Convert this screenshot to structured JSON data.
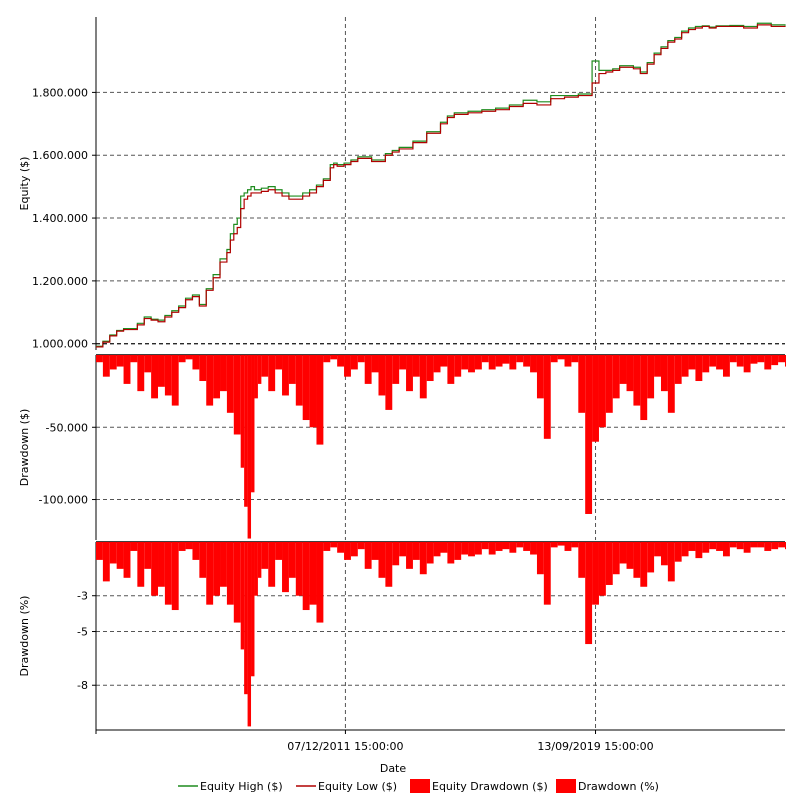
{
  "chart_data": {
    "type": "line",
    "xlabel": "Date",
    "x_ticks": [
      "07/12/2011 15:00:00",
      "13/09/2019 15:00:00"
    ],
    "colors": {
      "equity_high": "#1e8c1e",
      "equity_low": "#b00000",
      "drawdown_fill": "#ff0000",
      "grid": "#555555"
    },
    "legend": [
      {
        "label": "Equity High ($)",
        "marker": "line",
        "color": "#1e8c1e"
      },
      {
        "label": "Equity Low ($)",
        "marker": "line",
        "color": "#b00000"
      },
      {
        "label": "Equity Drawdown ($)",
        "marker": "box",
        "color": "#ff0000"
      },
      {
        "label": "Drawdown (%)",
        "marker": "box",
        "color": "#ff0000"
      }
    ],
    "legend_position": "bottom",
    "panels": [
      {
        "id": "equity",
        "ylabel": "Equity ($)",
        "ylim": [
          980000,
          2040000
        ],
        "y_ticks": [
          {
            "value": 1000000,
            "label": "1.000.000"
          },
          {
            "value": 1200000,
            "label": "1.200.000"
          },
          {
            "value": 1400000,
            "label": "1.400.000"
          },
          {
            "value": 1600000,
            "label": "1.600.000"
          },
          {
            "value": 1800000,
            "label": "1.800.000"
          }
        ],
        "series": [
          {
            "name": "Equity Low ($)",
            "x": [
              0,
              0.01,
              0.02,
              0.03,
              0.04,
              0.06,
              0.07,
              0.08,
              0.09,
              0.1,
              0.11,
              0.12,
              0.13,
              0.14,
              0.15,
              0.16,
              0.17,
              0.18,
              0.19,
              0.195,
              0.2,
              0.205,
              0.21,
              0.215,
              0.22,
              0.225,
              0.23,
              0.24,
              0.25,
              0.26,
              0.27,
              0.28,
              0.3,
              0.31,
              0.32,
              0.33,
              0.34,
              0.345,
              0.35,
              0.36,
              0.37,
              0.38,
              0.4,
              0.42,
              0.43,
              0.44,
              0.46,
              0.48,
              0.5,
              0.51,
              0.52,
              0.54,
              0.56,
              0.58,
              0.6,
              0.62,
              0.64,
              0.66,
              0.68,
              0.7,
              0.72,
              0.73,
              0.74,
              0.75,
              0.76,
              0.78,
              0.79,
              0.8,
              0.81,
              0.82,
              0.83,
              0.84,
              0.85,
              0.86,
              0.87,
              0.88,
              0.89,
              0.9,
              0.92,
              0.94,
              0.96,
              0.98,
              1.0
            ],
            "values": [
              990000,
              1005000,
              1025000,
              1040000,
              1045000,
              1060000,
              1080000,
              1075000,
              1070000,
              1085000,
              1100000,
              1115000,
              1140000,
              1150000,
              1120000,
              1170000,
              1210000,
              1260000,
              1290000,
              1330000,
              1350000,
              1370000,
              1430000,
              1460000,
              1470000,
              1480000,
              1480000,
              1485000,
              1490000,
              1480000,
              1470000,
              1460000,
              1470000,
              1480000,
              1500000,
              1520000,
              1560000,
              1570000,
              1565000,
              1570000,
              1580000,
              1590000,
              1580000,
              1600000,
              1610000,
              1620000,
              1640000,
              1670000,
              1700000,
              1720000,
              1730000,
              1735000,
              1740000,
              1745000,
              1755000,
              1765000,
              1760000,
              1780000,
              1785000,
              1790000,
              1830000,
              1860000,
              1865000,
              1870000,
              1880000,
              1875000,
              1860000,
              1890000,
              1920000,
              1940000,
              1960000,
              1970000,
              1990000,
              2000000,
              2005000,
              2010000,
              2005000,
              2010000,
              2010000,
              2005000,
              2015000,
              2010000,
              2008000
            ]
          },
          {
            "name": "Equity High ($)",
            "x": [
              0,
              0.01,
              0.02,
              0.03,
              0.04,
              0.06,
              0.07,
              0.08,
              0.09,
              0.1,
              0.11,
              0.12,
              0.13,
              0.14,
              0.15,
              0.16,
              0.17,
              0.18,
              0.19,
              0.195,
              0.2,
              0.205,
              0.21,
              0.215,
              0.22,
              0.225,
              0.23,
              0.24,
              0.25,
              0.26,
              0.27,
              0.28,
              0.3,
              0.31,
              0.32,
              0.33,
              0.34,
              0.345,
              0.35,
              0.36,
              0.37,
              0.38,
              0.4,
              0.42,
              0.43,
              0.44,
              0.46,
              0.48,
              0.5,
              0.51,
              0.52,
              0.54,
              0.56,
              0.58,
              0.6,
              0.62,
              0.64,
              0.66,
              0.68,
              0.7,
              0.72,
              0.73,
              0.74,
              0.75,
              0.76,
              0.78,
              0.79,
              0.8,
              0.81,
              0.82,
              0.83,
              0.84,
              0.85,
              0.86,
              0.87,
              0.88,
              0.89,
              0.9,
              0.92,
              0.94,
              0.96,
              0.98,
              1.0
            ],
            "values": [
              992000,
              1008000,
              1028000,
              1042000,
              1048000,
              1065000,
              1085000,
              1078000,
              1075000,
              1090000,
              1105000,
              1120000,
              1145000,
              1155000,
              1125000,
              1175000,
              1220000,
              1270000,
              1300000,
              1350000,
              1380000,
              1400000,
              1470000,
              1480000,
              1490000,
              1500000,
              1490000,
              1495000,
              1500000,
              1490000,
              1480000,
              1470000,
              1480000,
              1490000,
              1505000,
              1525000,
              1570000,
              1575000,
              1570000,
              1575000,
              1585000,
              1595000,
              1585000,
              1605000,
              1615000,
              1625000,
              1645000,
              1675000,
              1705000,
              1725000,
              1735000,
              1740000,
              1745000,
              1750000,
              1760000,
              1775000,
              1770000,
              1790000,
              1790000,
              1795000,
              1900000,
              1870000,
              1870000,
              1875000,
              1885000,
              1880000,
              1865000,
              1895000,
              1925000,
              1945000,
              1965000,
              1975000,
              1995000,
              2005000,
              2010000,
              2012000,
              2008000,
              2012000,
              2013000,
              2010000,
              2020000,
              2015000,
              2012000
            ]
          }
        ]
      },
      {
        "id": "drawdown_usd",
        "ylabel": "Drawdown ($)",
        "ylim": [
          -128000,
          0
        ],
        "y_ticks": [
          {
            "value": -50000,
            "label": "-50.000"
          },
          {
            "value": -100000,
            "label": "-100.000"
          }
        ],
        "series": [
          {
            "name": "Equity Drawdown ($)",
            "x": [
              0.0,
              0.01,
              0.02,
              0.03,
              0.04,
              0.05,
              0.06,
              0.07,
              0.08,
              0.09,
              0.1,
              0.11,
              0.12,
              0.13,
              0.14,
              0.15,
              0.16,
              0.17,
              0.18,
              0.19,
              0.2,
              0.21,
              0.215,
              0.22,
              0.225,
              0.23,
              0.235,
              0.24,
              0.25,
              0.26,
              0.27,
              0.28,
              0.29,
              0.3,
              0.31,
              0.32,
              0.33,
              0.34,
              0.35,
              0.36,
              0.37,
              0.38,
              0.39,
              0.4,
              0.41,
              0.42,
              0.43,
              0.44,
              0.45,
              0.46,
              0.47,
              0.48,
              0.49,
              0.5,
              0.51,
              0.52,
              0.53,
              0.54,
              0.55,
              0.56,
              0.57,
              0.58,
              0.59,
              0.6,
              0.61,
              0.62,
              0.63,
              0.64,
              0.65,
              0.66,
              0.67,
              0.68,
              0.69,
              0.7,
              0.71,
              0.72,
              0.73,
              0.74,
              0.75,
              0.76,
              0.77,
              0.78,
              0.79,
              0.8,
              0.81,
              0.82,
              0.83,
              0.84,
              0.85,
              0.86,
              0.87,
              0.88,
              0.89,
              0.9,
              0.91,
              0.92,
              0.93,
              0.94,
              0.95,
              0.96,
              0.97,
              0.98,
              0.99,
              1.0
            ],
            "values": [
              -5000,
              -15000,
              -10000,
              -8000,
              -20000,
              -5000,
              -25000,
              -12000,
              -30000,
              -22000,
              -28000,
              -35000,
              -5000,
              -3000,
              -10000,
              -18000,
              -35000,
              -30000,
              -25000,
              -40000,
              -55000,
              -78000,
              -105000,
              -127000,
              -95000,
              -30000,
              -20000,
              -15000,
              -25000,
              -10000,
              -28000,
              -20000,
              -35000,
              -45000,
              -50000,
              -62000,
              -5000,
              -3000,
              -8000,
              -15000,
              -10000,
              -5000,
              -20000,
              -12000,
              -28000,
              -38000,
              -20000,
              -10000,
              -25000,
              -15000,
              -30000,
              -18000,
              -12000,
              -8000,
              -20000,
              -15000,
              -10000,
              -12000,
              -10000,
              -5000,
              -10000,
              -8000,
              -6000,
              -10000,
              -5000,
              -8000,
              -12000,
              -30000,
              -58000,
              -5000,
              -3000,
              -8000,
              -5000,
              -40000,
              -110000,
              -60000,
              -50000,
              -40000,
              -30000,
              -20000,
              -25000,
              -35000,
              -45000,
              -30000,
              -15000,
              -25000,
              -40000,
              -20000,
              -15000,
              -10000,
              -18000,
              -12000,
              -8000,
              -10000,
              -15000,
              -5000,
              -8000,
              -12000,
              -6000,
              -5000,
              -10000,
              -7000,
              -5000,
              -8000
            ]
          }
        ]
      },
      {
        "id": "drawdown_pct",
        "ylabel": "Drawdown (%)",
        "ylim": [
          -10.5,
          0
        ],
        "y_ticks": [
          {
            "value": -3,
            "label": "-3"
          },
          {
            "value": -5,
            "label": "-5"
          },
          {
            "value": -8,
            "label": "-8"
          }
        ],
        "series": [
          {
            "name": "Drawdown (%)",
            "x": [
              0.0,
              0.01,
              0.02,
              0.03,
              0.04,
              0.05,
              0.06,
              0.07,
              0.08,
              0.09,
              0.1,
              0.11,
              0.12,
              0.13,
              0.14,
              0.15,
              0.16,
              0.17,
              0.18,
              0.19,
              0.2,
              0.21,
              0.215,
              0.22,
              0.225,
              0.23,
              0.235,
              0.24,
              0.25,
              0.26,
              0.27,
              0.28,
              0.29,
              0.3,
              0.31,
              0.32,
              0.33,
              0.34,
              0.35,
              0.36,
              0.37,
              0.38,
              0.39,
              0.4,
              0.41,
              0.42,
              0.43,
              0.44,
              0.45,
              0.46,
              0.47,
              0.48,
              0.49,
              0.5,
              0.51,
              0.52,
              0.53,
              0.54,
              0.55,
              0.56,
              0.57,
              0.58,
              0.59,
              0.6,
              0.61,
              0.62,
              0.63,
              0.64,
              0.65,
              0.66,
              0.67,
              0.68,
              0.69,
              0.7,
              0.71,
              0.72,
              0.73,
              0.74,
              0.75,
              0.76,
              0.77,
              0.78,
              0.79,
              0.8,
              0.81,
              0.82,
              0.83,
              0.84,
              0.85,
              0.86,
              0.87,
              0.88,
              0.89,
              0.9,
              0.91,
              0.92,
              0.93,
              0.94,
              0.95,
              0.96,
              0.97,
              0.98,
              0.99,
              1.0
            ],
            "values": [
              -1.0,
              -2.2,
              -1.2,
              -1.5,
              -2.0,
              -0.5,
              -2.5,
              -1.5,
              -3.0,
              -2.5,
              -3.5,
              -3.8,
              -0.5,
              -0.4,
              -1.0,
              -2.0,
              -3.5,
              -3.0,
              -2.5,
              -3.5,
              -4.5,
              -6.0,
              -8.5,
              -10.3,
              -7.5,
              -3.0,
              -2.0,
              -1.5,
              -2.5,
              -1.0,
              -2.8,
              -2.0,
              -3.0,
              -3.8,
              -3.5,
              -4.5,
              -0.5,
              -0.3,
              -0.6,
              -1.0,
              -0.8,
              -0.4,
              -1.5,
              -1.0,
              -2.0,
              -2.5,
              -1.3,
              -0.8,
              -1.5,
              -1.0,
              -1.8,
              -1.2,
              -0.8,
              -0.6,
              -1.2,
              -1.0,
              -0.7,
              -0.8,
              -0.7,
              -0.4,
              -0.7,
              -0.5,
              -0.4,
              -0.6,
              -0.3,
              -0.5,
              -0.7,
              -1.8,
              -3.5,
              -0.3,
              -0.2,
              -0.5,
              -0.3,
              -2.0,
              -5.7,
              -3.5,
              -3.0,
              -2.4,
              -1.8,
              -1.2,
              -1.5,
              -2.0,
              -2.5,
              -1.7,
              -0.8,
              -1.3,
              -2.2,
              -1.1,
              -0.8,
              -0.5,
              -0.9,
              -0.6,
              -0.4,
              -0.5,
              -0.8,
              -0.3,
              -0.4,
              -0.6,
              -0.3,
              -0.3,
              -0.5,
              -0.4,
              -0.3,
              -0.4
            ]
          }
        ]
      }
    ]
  }
}
